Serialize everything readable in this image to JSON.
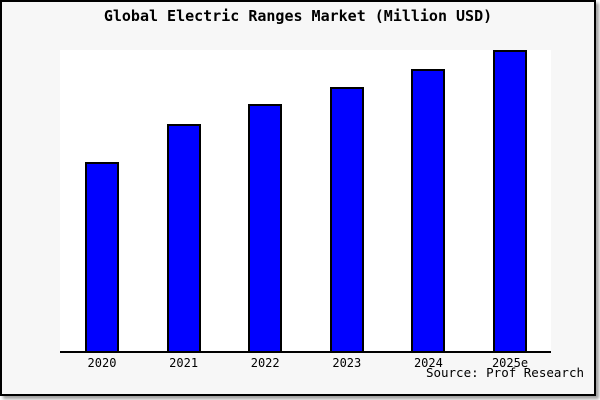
{
  "header": {
    "title": "Global Electric Ranges Market (Million USD)"
  },
  "footer": {
    "source": "Source: Prof Research"
  },
  "colors": {
    "bar_fill": "#0000ff",
    "bar_outline": "#000000",
    "frame_background": "#f7f7f7",
    "plot_background": "#ffffff",
    "axis": "#000000",
    "text": "#000000",
    "border": "#000000"
  },
  "chart_data": {
    "type": "bar",
    "title": "Global Electric Ranges Market (Million USD)",
    "categories": [
      "2020",
      "2021",
      "2022",
      "2023",
      "2024",
      "2025e"
    ],
    "values": [
      62.8,
      75.4,
      81.9,
      87.7,
      93.7,
      100
    ],
    "units": "relative index (no numeric y-axis shown in chart; values normalized so 2025e = 100)",
    "xlabel": "",
    "ylabel": "",
    "ylim": [
      0,
      100
    ],
    "grid": false,
    "legend": "none",
    "source": "Source: Prof Research"
  }
}
